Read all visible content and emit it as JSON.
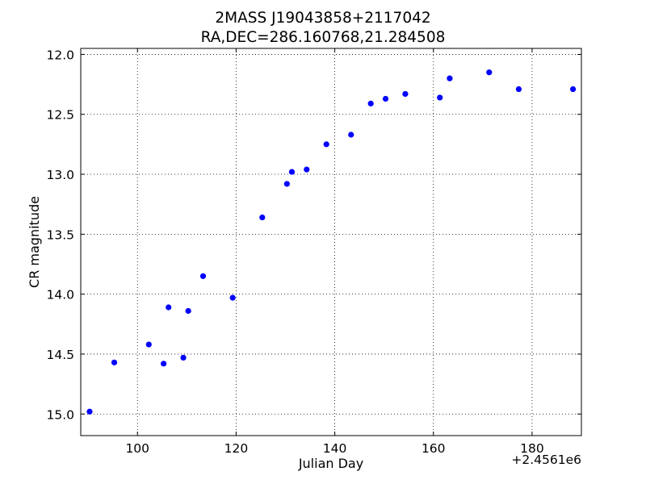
{
  "chart_data": {
    "type": "scatter",
    "title": "2MASS J19043858+2117042",
    "subtitle": "RA,DEC=286.160768,21.284508",
    "xlabel": "Julian Day",
    "ylabel": "CR magnitude",
    "x_offset_label": "+2.4561e6",
    "xlim": [
      88.5,
      190
    ],
    "ylim": [
      15.18,
      11.95
    ],
    "y_inverted": true,
    "grid": true,
    "x_ticks": [
      100,
      120,
      140,
      160,
      180
    ],
    "x_tick_labels": [
      "100",
      "120",
      "140",
      "160",
      "180"
    ],
    "y_ticks": [
      12.0,
      12.5,
      13.0,
      13.5,
      14.0,
      14.5,
      15.0
    ],
    "y_tick_labels": [
      "12.0",
      "12.5",
      "13.0",
      "13.5",
      "14.0",
      "14.5",
      "15.0"
    ],
    "marker_color": "#0000ff",
    "x": [
      90.3,
      95.3,
      102.3,
      105.3,
      106.3,
      109.3,
      110.3,
      113.3,
      119.3,
      125.3,
      130.3,
      131.3,
      134.3,
      138.3,
      143.3,
      147.3,
      150.3,
      154.3,
      161.3,
      163.3,
      171.3,
      177.3,
      188.3
    ],
    "y": [
      14.98,
      14.57,
      14.42,
      14.58,
      14.11,
      14.53,
      14.14,
      13.85,
      14.03,
      13.36,
      13.08,
      12.98,
      12.96,
      12.75,
      12.67,
      12.41,
      12.37,
      12.33,
      12.36,
      12.2,
      12.15,
      12.29,
      12.29
    ]
  }
}
